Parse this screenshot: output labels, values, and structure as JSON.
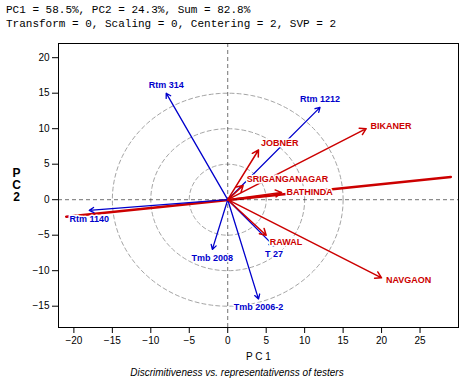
{
  "chart_data": {
    "type": "biplot",
    "title": "PC1 = 58.5%, PC2 = 24.3%, Sum = 82.8%",
    "subtitle": "Transform = 0, Scaling = 0, Centering = 2, SVP = 2",
    "xlabel": "P C 1",
    "ylabel": "P\nC\n2",
    "caption": "Discrimitiveness vs. representativenss of testers",
    "xlim": [
      -22,
      30
    ],
    "ylim": [
      -18,
      22
    ],
    "xticks": [
      -20,
      -15,
      -10,
      -5,
      0,
      5,
      10,
      15,
      20,
      25
    ],
    "yticks": [
      -15,
      -10,
      -5,
      0,
      5,
      10,
      15,
      20
    ],
    "grid": false,
    "background": "#ffffff",
    "origin": [
      0,
      0
    ],
    "crosshair": {
      "color": "#000000",
      "line_style": "dashed"
    },
    "circles": {
      "radii": [
        5,
        10,
        15
      ],
      "color": "#999999",
      "line_style": "dashed"
    },
    "average_line": {
      "start": [
        -21,
        -2.4
      ],
      "end": [
        29,
        3.2
      ],
      "color": "#cc0000"
    },
    "genotypes": {
      "color": "#0000cc",
      "points": [
        {
          "label": "Rtm 314",
          "x": -8,
          "y": 15
        },
        {
          "label": "Rtm 1212",
          "x": 12,
          "y": 13
        },
        {
          "label": "Rtm 1140",
          "x": -18,
          "y": -1.5
        },
        {
          "label": "Tmb 2008",
          "x": -2,
          "y": -7
        },
        {
          "label": "Tmb 2006-2",
          "x": 4,
          "y": -14
        },
        {
          "label": "T 27",
          "x": 6,
          "y": -6.5
        }
      ]
    },
    "environments": {
      "color": "#cc0000",
      "points": [
        {
          "label": "BIKANER",
          "x": 18,
          "y": 10
        },
        {
          "label": "JOBNER",
          "x": 4,
          "y": 7
        },
        {
          "label": "SRIGANGANAGAR",
          "x": 2,
          "y": 2
        },
        {
          "label": "BATHINDA",
          "x": 7,
          "y": 1
        },
        {
          "label": "RAWAL",
          "x": 5,
          "y": -5
        },
        {
          "label": "NAVGAON",
          "x": 20,
          "y": -11
        }
      ]
    }
  }
}
